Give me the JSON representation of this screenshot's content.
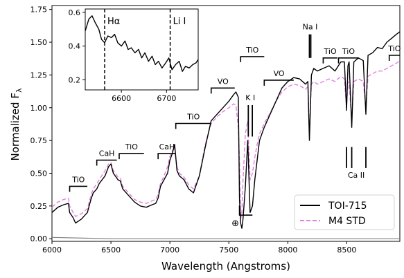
{
  "chart_data": [
    {
      "type": "line",
      "xlabel": "Wavelength (Angstroms)",
      "ylabel": "Normalized F",
      "ylabel_sub": "λ",
      "xlim": [
        6000,
        8950
      ],
      "ylim": [
        -0.02,
        1.78
      ],
      "xticks": [
        6000,
        6500,
        7000,
        7500,
        8000,
        8500
      ],
      "yticks": [
        0.0,
        0.25,
        0.5,
        0.75,
        1.0,
        1.25,
        1.5,
        1.75
      ],
      "ytick_labels": [
        "0.00",
        "0.25",
        "0.50",
        "0.75",
        "1.00",
        "1.25",
        "1.50",
        "1.75"
      ],
      "legend": {
        "position": "lower-right",
        "entries": [
          "TOI-715",
          "M4 STD"
        ]
      },
      "colors": {
        "toi": "#000000",
        "std": "#e080e0",
        "resid": "#808080"
      },
      "series": [
        {
          "name": "TOI-715",
          "style": "solid",
          "x": [
            6000,
            6050,
            6100,
            6140,
            6150,
            6180,
            6200,
            6250,
            6300,
            6330,
            6350,
            6380,
            6400,
            6450,
            6480,
            6500,
            6520,
            6560,
            6580,
            6600,
            6650,
            6700,
            6750,
            6800,
            6850,
            6880,
            6900,
            6920,
            6950,
            6980,
            7000,
            7020,
            7040,
            7050,
            7060,
            7080,
            7120,
            7160,
            7200,
            7250,
            7300,
            7350,
            7400,
            7450,
            7500,
            7540,
            7560,
            7580,
            7590,
            7600,
            7610,
            7620,
            7640,
            7660,
            7680,
            7700,
            7720,
            7740,
            7760,
            7800,
            7850,
            7900,
            7950,
            8000,
            8050,
            8100,
            8150,
            8170,
            8183,
            8195,
            8200,
            8220,
            8250,
            8300,
            8350,
            8400,
            8450,
            8480,
            8498,
            8510,
            8520,
            8542,
            8560,
            8600,
            8640,
            8662,
            8680,
            8720,
            8760,
            8800,
            8840,
            8880,
            8920,
            8950
          ],
          "y": [
            0.2,
            0.24,
            0.26,
            0.27,
            0.2,
            0.16,
            0.12,
            0.15,
            0.2,
            0.3,
            0.35,
            0.38,
            0.42,
            0.48,
            0.55,
            0.57,
            0.5,
            0.45,
            0.44,
            0.38,
            0.33,
            0.28,
            0.25,
            0.24,
            0.26,
            0.27,
            0.31,
            0.4,
            0.45,
            0.5,
            0.6,
            0.65,
            0.72,
            0.62,
            0.52,
            0.48,
            0.45,
            0.38,
            0.35,
            0.48,
            0.7,
            0.9,
            0.95,
            1.0,
            1.05,
            1.1,
            1.12,
            1.08,
            0.3,
            0.12,
            0.08,
            0.15,
            0.4,
            0.75,
            0.2,
            0.25,
            0.45,
            0.6,
            0.75,
            0.85,
            0.95,
            1.05,
            1.15,
            1.2,
            1.23,
            1.22,
            1.18,
            1.2,
            0.75,
            1.1,
            1.25,
            1.3,
            1.28,
            1.3,
            1.32,
            1.28,
            1.35,
            1.35,
            0.98,
            1.32,
            1.35,
            0.85,
            1.35,
            1.38,
            1.36,
            0.95,
            1.4,
            1.42,
            1.46,
            1.45,
            1.5,
            1.53,
            1.56,
            1.58
          ]
        },
        {
          "name": "M4 STD",
          "style": "dashed",
          "x": [
            6000,
            6050,
            6100,
            6140,
            6150,
            6180,
            6200,
            6250,
            6300,
            6330,
            6350,
            6380,
            6400,
            6450,
            6480,
            6500,
            6520,
            6560,
            6580,
            6600,
            6650,
            6700,
            6750,
            6800,
            6850,
            6880,
            6900,
            6920,
            6950,
            6980,
            7000,
            7020,
            7040,
            7050,
            7060,
            7080,
            7120,
            7160,
            7200,
            7250,
            7300,
            7350,
            7400,
            7450,
            7500,
            7540,
            7560,
            7580,
            7590,
            7600,
            7610,
            7620,
            7640,
            7660,
            7680,
            7700,
            7720,
            7740,
            7760,
            7800,
            7850,
            7900,
            7950,
            8000,
            8050,
            8100,
            8150,
            8170,
            8183,
            8195,
            8200,
            8220,
            8250,
            8300,
            8350,
            8400,
            8450,
            8480,
            8498,
            8510,
            8520,
            8542,
            8560,
            8600,
            8640,
            8662,
            8680,
            8720,
            8760,
            8800,
            8840,
            8880,
            8920,
            8950
          ],
          "y": [
            0.24,
            0.28,
            0.3,
            0.31,
            0.25,
            0.2,
            0.17,
            0.19,
            0.23,
            0.33,
            0.38,
            0.42,
            0.45,
            0.52,
            0.57,
            0.58,
            0.52,
            0.47,
            0.46,
            0.4,
            0.35,
            0.3,
            0.28,
            0.27,
            0.29,
            0.3,
            0.34,
            0.42,
            0.48,
            0.55,
            0.63,
            0.67,
            0.7,
            0.62,
            0.55,
            0.5,
            0.47,
            0.41,
            0.38,
            0.48,
            0.72,
            0.88,
            0.93,
            0.97,
            1.0,
            1.03,
            1.02,
            0.85,
            0.6,
            0.15,
            0.2,
            0.45,
            0.8,
            0.9,
            0.45,
            0.5,
            0.62,
            0.72,
            0.8,
            0.88,
            0.96,
            1.05,
            1.12,
            1.16,
            1.18,
            1.17,
            1.14,
            1.16,
            0.8,
            1.08,
            1.18,
            1.2,
            1.18,
            1.2,
            1.22,
            1.2,
            1.24,
            1.22,
            1.0,
            1.2,
            1.18,
            0.9,
            1.2,
            1.22,
            1.2,
            1.0,
            1.24,
            1.26,
            1.28,
            1.28,
            1.3,
            1.32,
            1.34,
            1.36
          ]
        },
        {
          "name": "",
          "style": "solid",
          "x": [
            6000,
            6500,
            7000,
            7500,
            8000,
            8500,
            8950
          ],
          "y": [
            0.01,
            0.0,
            0.0,
            0.0,
            0.0,
            0.0,
            0.0
          ]
        }
      ],
      "annotations": [
        {
          "label": "TiO",
          "bracket_x": [
            6150,
            6300
          ],
          "bracket_y": 0.4,
          "tick_down": true
        },
        {
          "label": "CaH",
          "bracket_x": [
            6380,
            6550
          ],
          "bracket_y": 0.6,
          "tick_down": true
        },
        {
          "label": "TiO",
          "bracket_x": [
            6570,
            6780
          ],
          "bracket_y": 0.65,
          "tick_down": true
        },
        {
          "label": "CaH",
          "bracket_x": [
            6900,
            7050
          ],
          "bracket_y": 0.65,
          "tick_down": true
        },
        {
          "label": "TiO",
          "bracket_x": [
            7050,
            7350
          ],
          "bracket_y": 0.88,
          "tick_down": true
        },
        {
          "label": "VO",
          "bracket_x": [
            7350,
            7550
          ],
          "bracket_y": 1.15,
          "tick_down": true
        },
        {
          "label": "TiO",
          "bracket_x": [
            7600,
            7800
          ],
          "bracket_y": 1.39,
          "tick_down": true
        },
        {
          "label": "VO",
          "bracket_x": [
            7800,
            8050
          ],
          "bracket_y": 1.21,
          "tick_down": true
        },
        {
          "label": "TiO",
          "bracket_x": [
            8300,
            8420
          ],
          "bracket_y": 1.38,
          "tick_down": true
        },
        {
          "label": "TiO",
          "bracket_x": [
            8430,
            8600
          ],
          "bracket_y": 1.38,
          "tick_down": true
        },
        {
          "label": "TiO",
          "bracket_x": [
            8860,
            8950
          ],
          "bracket_y": 1.4,
          "tick_down": true
        }
      ],
      "line_markers": [
        {
          "label": "K I",
          "x": [
            7665,
            7699
          ],
          "y_top": 1.02,
          "y_bottom": 0.78,
          "label_pos": "above"
        },
        {
          "label": "Na I",
          "x": [
            8183,
            8195
          ],
          "y_top": 1.56,
          "y_bottom": 1.38,
          "label_pos": "above"
        },
        {
          "label": "Ca II",
          "x": [
            8498,
            8542,
            8662
          ],
          "y_top": 0.7,
          "y_bottom": 0.54,
          "label_pos": "below"
        }
      ],
      "telluric": {
        "label": "⊕",
        "x_start": 7590,
        "x_end": 7700,
        "y": 0.18
      }
    },
    {
      "type": "line",
      "inset": true,
      "xlim": [
        6520,
        6770
      ],
      "ylim": [
        0.14,
        0.62
      ],
      "xticks": [
        6600,
        6700
      ],
      "yticks": [
        0.2,
        0.4,
        0.6
      ],
      "ytick_labels": [
        "0.2",
        "0.4",
        "0.6"
      ],
      "markers": [
        {
          "label": "Hα",
          "x": 6563
        },
        {
          "label": "Li I",
          "x": 6708
        }
      ],
      "series": [
        {
          "name": "TOI-715",
          "x": [
            6520,
            6528,
            6535,
            6542,
            6550,
            6556,
            6563,
            6570,
            6578,
            6585,
            6592,
            6600,
            6608,
            6615,
            6622,
            6630,
            6638,
            6645,
            6652,
            6660,
            6668,
            6675,
            6682,
            6690,
            6698,
            6705,
            6712,
            6720,
            6728,
            6735,
            6742,
            6750,
            6758,
            6765,
            6770
          ],
          "y": [
            0.49,
            0.56,
            0.58,
            0.54,
            0.5,
            0.44,
            0.42,
            0.46,
            0.45,
            0.47,
            0.42,
            0.4,
            0.43,
            0.38,
            0.39,
            0.36,
            0.38,
            0.33,
            0.36,
            0.31,
            0.34,
            0.29,
            0.31,
            0.27,
            0.3,
            0.33,
            0.26,
            0.29,
            0.31,
            0.25,
            0.28,
            0.27,
            0.29,
            0.3,
            0.32
          ]
        }
      ]
    }
  ]
}
